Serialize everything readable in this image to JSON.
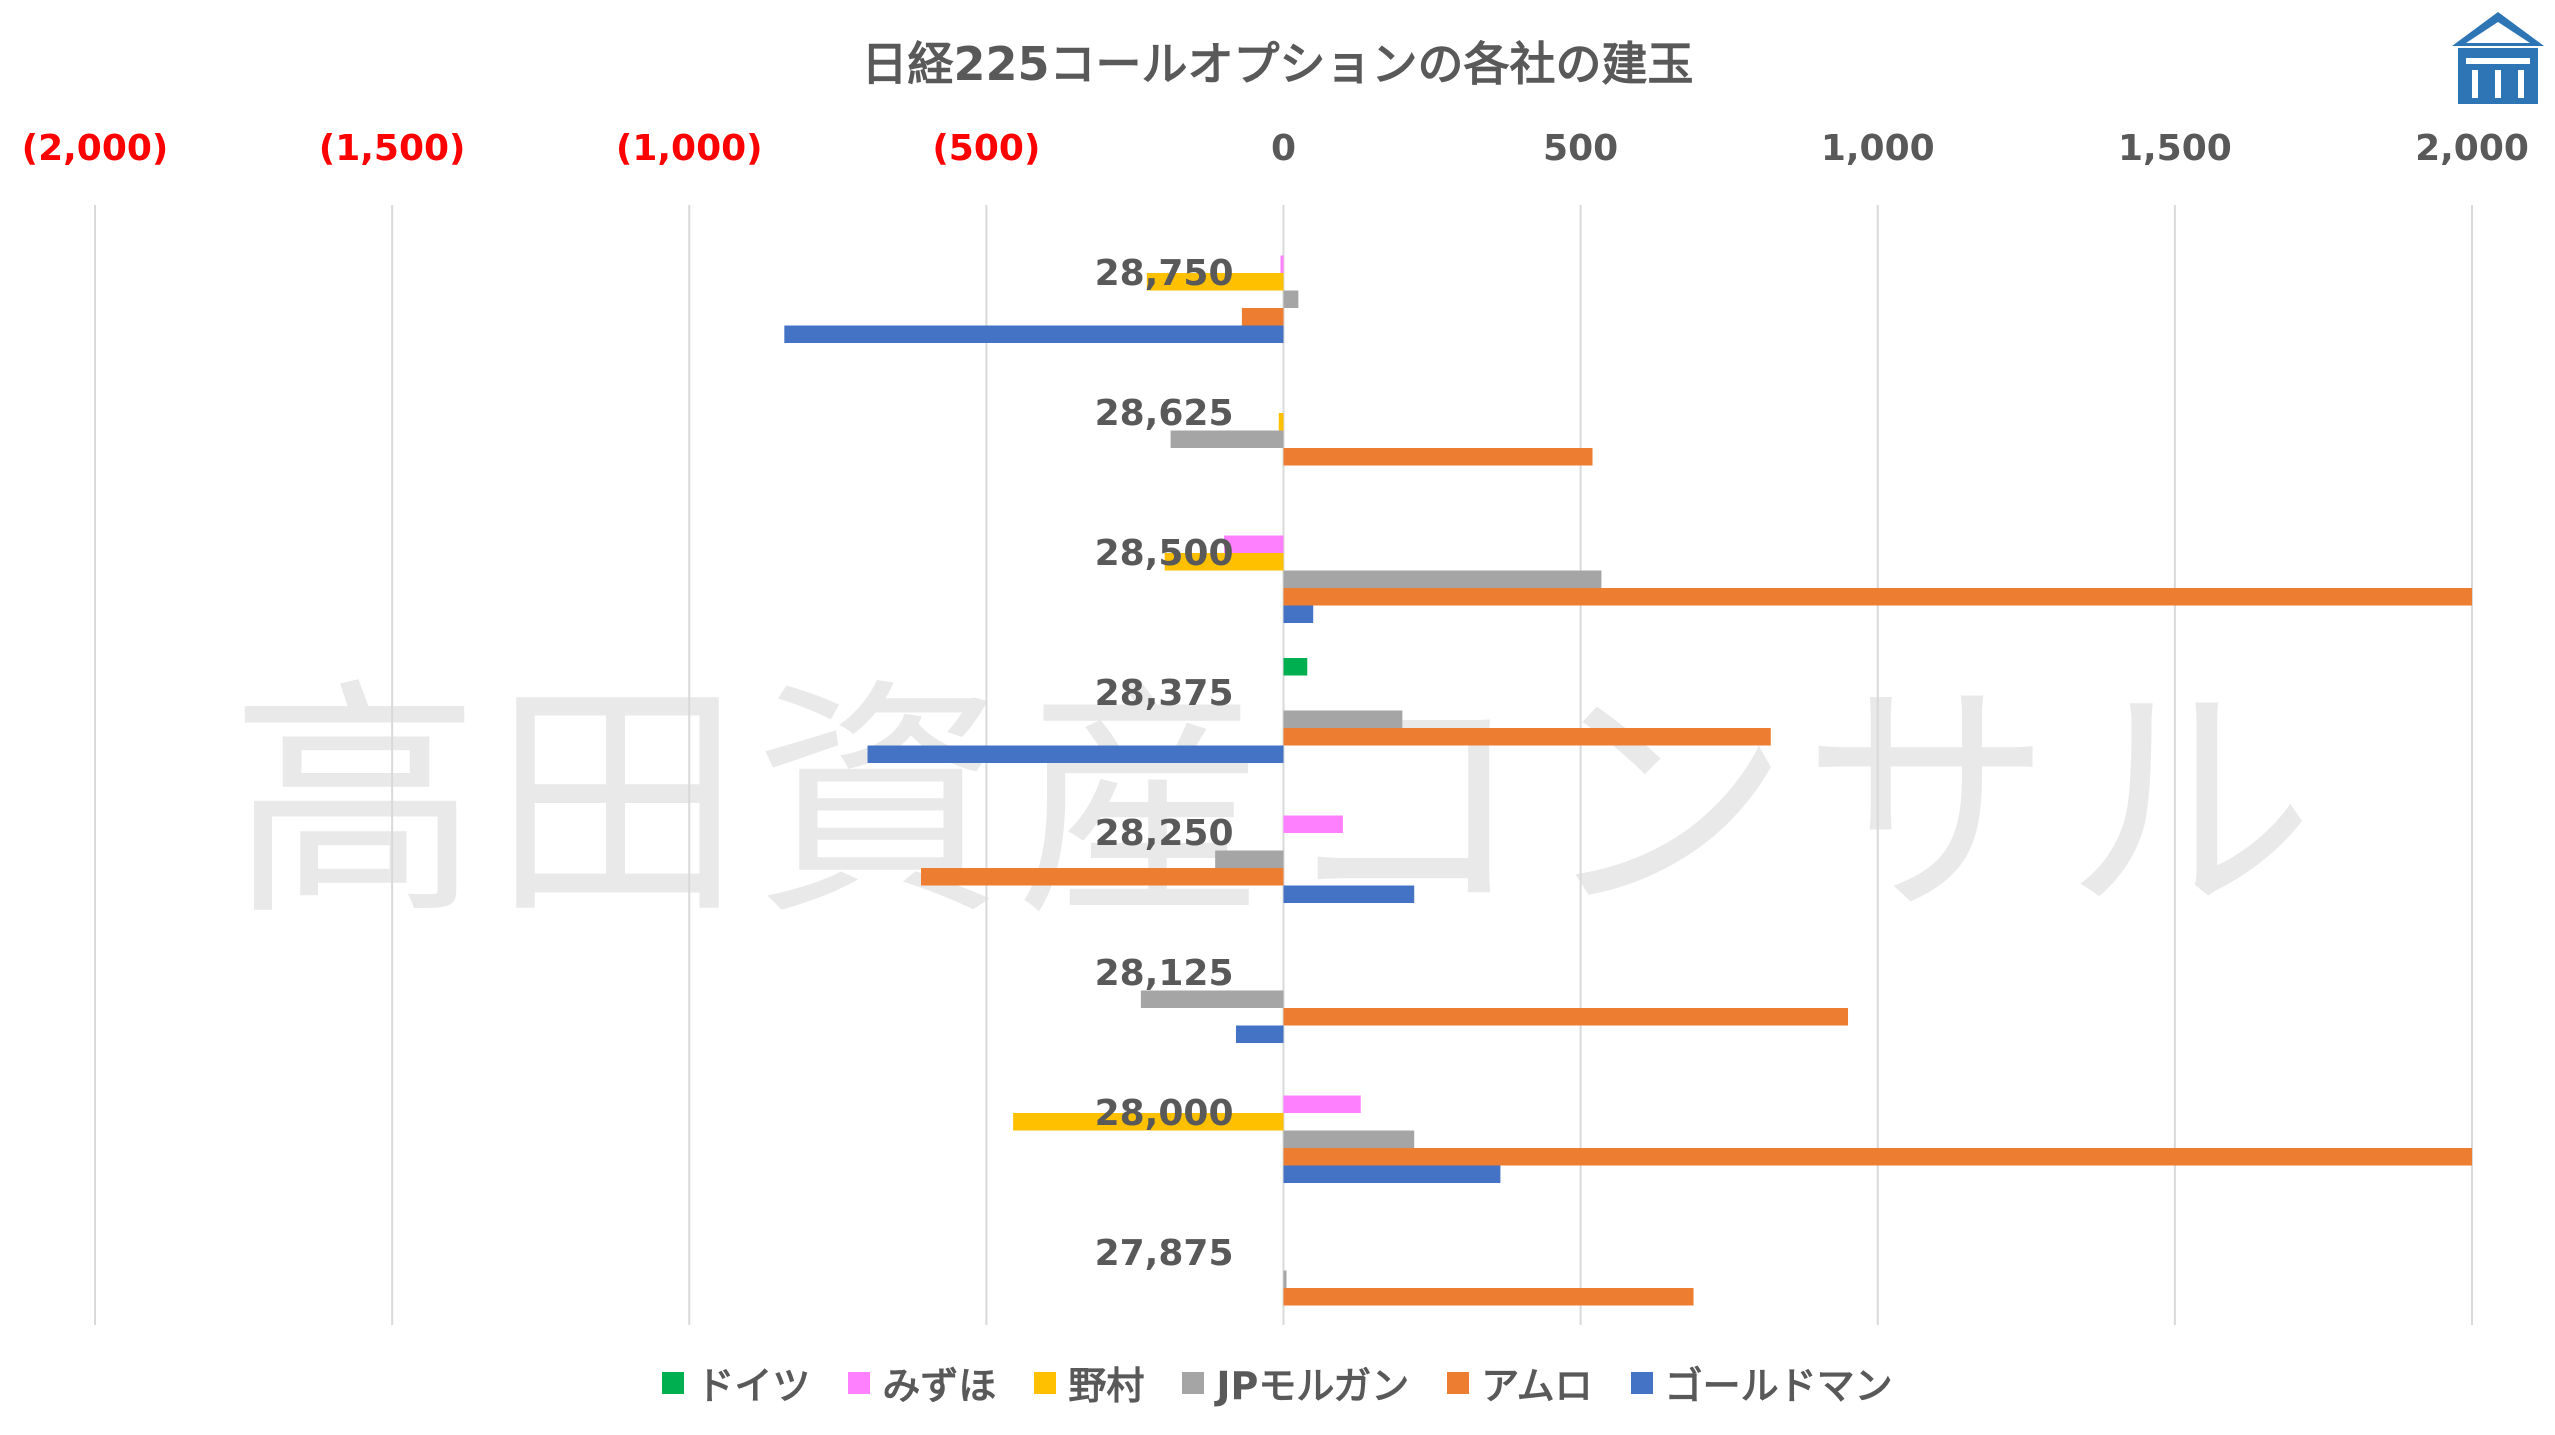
{
  "title": "日経225コールオプションの各社の建玉",
  "watermark": "高田資産コンサル",
  "logo": {
    "icon": "building-icon",
    "color": "#2E75B6"
  },
  "legend_items": [
    {
      "name": "ドイツ",
      "color": "#00B050"
    },
    {
      "name": "みずほ",
      "color": "#FF80FF"
    },
    {
      "name": "野村",
      "color": "#FFC000"
    },
    {
      "name": "JPモルガン",
      "color": "#A5A5A5"
    },
    {
      "name": "アムロ",
      "color": "#ED7D31"
    },
    {
      "name": "ゴールドマン",
      "color": "#4472C4"
    }
  ],
  "chart_data": {
    "type": "bar",
    "orientation": "horizontal",
    "title": "日経225コールオプションの各社の建玉",
    "xlim": [
      -2000,
      2000
    ],
    "x_ticks": [
      {
        "value": -2000,
        "label": "(2,000)",
        "color": "#FF0000"
      },
      {
        "value": -1500,
        "label": "(1,500)",
        "color": "#FF0000"
      },
      {
        "value": -1000,
        "label": "(1,000)",
        "color": "#FF0000"
      },
      {
        "value": -500,
        "label": "(500)",
        "color": "#FF0000"
      },
      {
        "value": 0,
        "label": "0",
        "color": "#595959"
      },
      {
        "value": 500,
        "label": "500",
        "color": "#595959"
      },
      {
        "value": 1000,
        "label": "1,000",
        "color": "#595959"
      },
      {
        "value": 1500,
        "label": "1,500",
        "color": "#595959"
      },
      {
        "value": 2000,
        "label": "2,000",
        "color": "#595959"
      }
    ],
    "categories": [
      "28,750",
      "28,625",
      "28,500",
      "28,375",
      "28,250",
      "28,125",
      "28,000",
      "27,875"
    ],
    "grid": true,
    "legend_position": "bottom",
    "series": [
      {
        "name": "ドイツ",
        "color": "#00B050",
        "values": [
          0,
          0,
          0,
          40,
          0,
          0,
          0,
          0
        ]
      },
      {
        "name": "みずほ",
        "color": "#FF80FF",
        "values": [
          -5,
          0,
          -100,
          0,
          100,
          0,
          130,
          0
        ]
      },
      {
        "name": "野村",
        "color": "#FFC000",
        "values": [
          -230,
          -8,
          -200,
          0,
          0,
          0,
          -455,
          0
        ]
      },
      {
        "name": "JPモルガン",
        "color": "#A5A5A5",
        "values": [
          25,
          -190,
          535,
          200,
          -115,
          -240,
          220,
          5
        ]
      },
      {
        "name": "アムロ",
        "color": "#ED7D31",
        "values": [
          -70,
          520,
          2000,
          820,
          -610,
          950,
          2000,
          690
        ]
      },
      {
        "name": "ゴールドマン",
        "color": "#4472C4",
        "values": [
          -840,
          0,
          50,
          -700,
          220,
          -80,
          365,
          0
        ]
      }
    ]
  }
}
